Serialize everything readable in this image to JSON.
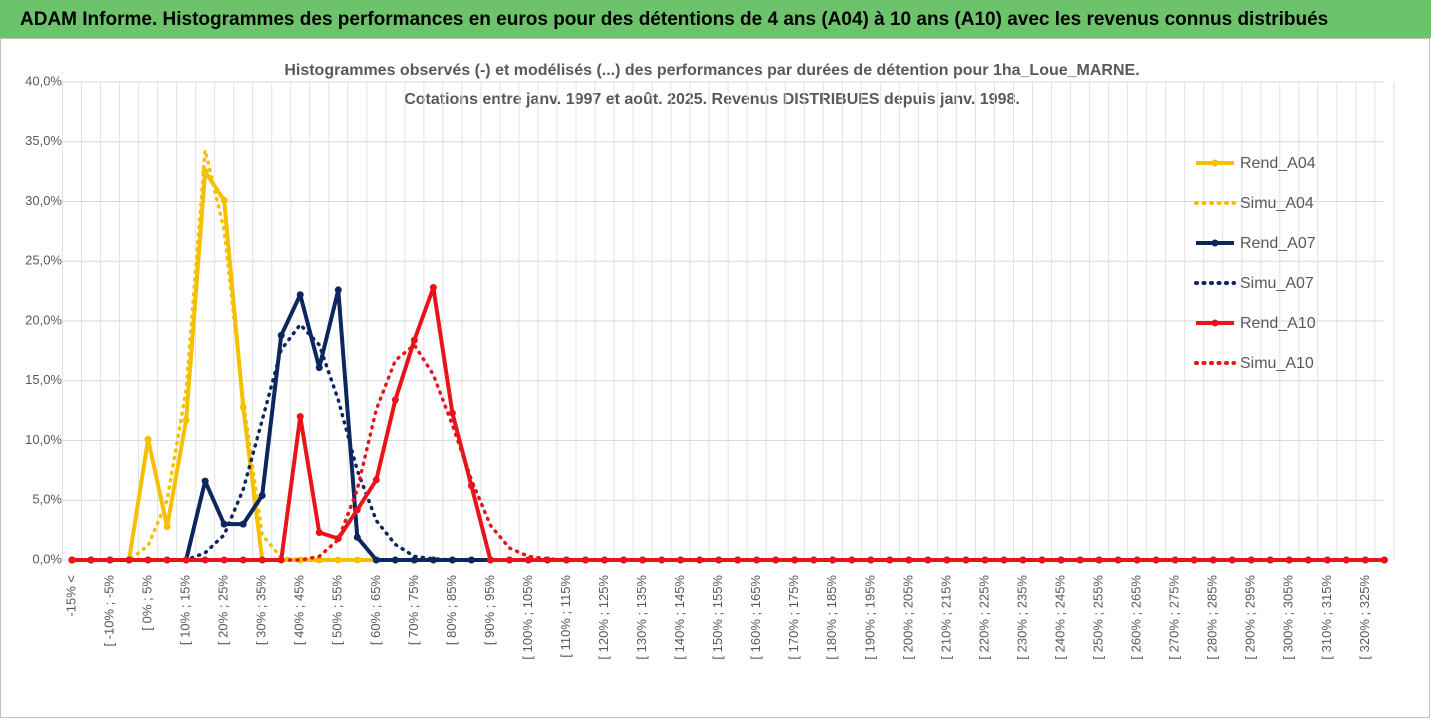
{
  "header": {
    "title": "ADAM Informe. Histogrammes des performances en euros pour des détentions de 4 ans (A04) à 10 ans (A10) avec les revenus connus distribués"
  },
  "chart_data": {
    "type": "line",
    "title": "Histogrammes observés (-) et modélisés (...) des performances par durées de détention pour 1ha_Loue_MARNE.",
    "subtitle": "Cotations entre janv. 1997 et août. 2025. Revenus DISTRIBUES depuis janv. 1998.",
    "categories": [
      "-15% <",
      null,
      "[ -10% ; -5%",
      null,
      "[ 0% ; 5%",
      null,
      "[ 10% ; 15%",
      null,
      "[ 20% ; 25%",
      null,
      "[ 30% ; 35%",
      null,
      "[ 40% ; 45%",
      null,
      "[ 50% ; 55%",
      null,
      "[ 60% ; 65%",
      null,
      "[ 70% ; 75%",
      null,
      "[ 80% ; 85%",
      null,
      "[ 90% ; 95%",
      null,
      "[ 100% ; 105%",
      null,
      "[ 110% ; 115%",
      null,
      "[ 120% ; 125%",
      null,
      "[ 130% ; 135%",
      null,
      "[ 140% ; 145%",
      null,
      "[ 150% ; 155%",
      null,
      "[ 160% ; 165%",
      null,
      "[ 170% ; 175%",
      null,
      "[ 180% ; 185%",
      null,
      "[ 190% ; 195%",
      null,
      "[ 200% ; 205%",
      null,
      "[ 210% ; 215%",
      null,
      "[ 220% ; 225%",
      null,
      "[ 230% ; 235%",
      null,
      "[ 240% ; 245%",
      null,
      "[ 250% ; 255%",
      null,
      "[ 260% ; 265%",
      null,
      "[ 270% ; 275%",
      null,
      "[ 280% ; 285%",
      null,
      "[ 290% ; 295%",
      null,
      "[ 300% ; 305%",
      null,
      "[ 310% ; 315%",
      null,
      "[ 320% ; 325%",
      null
    ],
    "series": [
      {
        "name": "Rend_A04",
        "color": "#f5c000",
        "style": "solid",
        "markers": true,
        "values": [
          0,
          0,
          0,
          0,
          10.1,
          2.8,
          11.7,
          32.5,
          30.1,
          12.8,
          0,
          0,
          0,
          0,
          0,
          0,
          0,
          0,
          0,
          0,
          0,
          0,
          0,
          0,
          0,
          0,
          0,
          0,
          0,
          0,
          0,
          0,
          0,
          0,
          0,
          0,
          0,
          0,
          0,
          0,
          0,
          0,
          0,
          0,
          0,
          0,
          0,
          0,
          0,
          0,
          0,
          0,
          0,
          0,
          0,
          0,
          0,
          0,
          0,
          0,
          0,
          0,
          0,
          0,
          0,
          0,
          0,
          0,
          0,
          0
        ]
      },
      {
        "name": "Simu_A04",
        "color": "#f5c000",
        "style": "dotted",
        "markers": false,
        "values": [
          0,
          0,
          0,
          0,
          1.2,
          5.0,
          14.2,
          34.3,
          27.6,
          13.4,
          2.1,
          0.2,
          0,
          0,
          0,
          0,
          0,
          0,
          0,
          0,
          0,
          0,
          0,
          0,
          0,
          0,
          0,
          0,
          0,
          0,
          0,
          0,
          0,
          0,
          0,
          0,
          0,
          0,
          0,
          0,
          0,
          0,
          0,
          0,
          0,
          0,
          0,
          0,
          0,
          0,
          0,
          0,
          0,
          0,
          0,
          0,
          0,
          0,
          0,
          0,
          0,
          0,
          0,
          0,
          0,
          0,
          0,
          0,
          0,
          0
        ]
      },
      {
        "name": "Rend_A07",
        "color": "#0c2660",
        "style": "solid",
        "markers": true,
        "values": [
          0,
          0,
          0,
          0,
          0,
          0,
          0,
          6.6,
          3.0,
          3.0,
          5.4,
          18.8,
          22.2,
          16.1,
          22.6,
          1.9,
          0,
          0,
          0,
          0,
          0,
          0,
          0,
          0,
          0,
          0,
          0,
          0,
          0,
          0,
          0,
          0,
          0,
          0,
          0,
          0,
          0,
          0,
          0,
          0,
          0,
          0,
          0,
          0,
          0,
          0,
          0,
          0,
          0,
          0,
          0,
          0,
          0,
          0,
          0,
          0,
          0,
          0,
          0,
          0,
          0,
          0,
          0,
          0,
          0,
          0,
          0,
          0,
          0,
          0
        ]
      },
      {
        "name": "Simu_A07",
        "color": "#0c2660",
        "style": "dotted",
        "markers": false,
        "values": [
          0,
          0,
          0,
          0,
          0,
          0,
          0,
          0.6,
          2.1,
          5.9,
          11.7,
          17.6,
          19.7,
          18.0,
          13.4,
          7.5,
          3.3,
          1.3,
          0.3,
          0.1,
          0,
          0,
          0,
          0,
          0,
          0,
          0,
          0,
          0,
          0,
          0,
          0,
          0,
          0,
          0,
          0,
          0,
          0,
          0,
          0,
          0,
          0,
          0,
          0,
          0,
          0,
          0,
          0,
          0,
          0,
          0,
          0,
          0,
          0,
          0,
          0,
          0,
          0,
          0,
          0,
          0,
          0,
          0,
          0,
          0,
          0,
          0,
          0,
          0,
          0
        ]
      },
      {
        "name": "Rend_A10",
        "color": "#e8141a",
        "style": "solid",
        "markers": true,
        "values": [
          0,
          0,
          0,
          0,
          0,
          0,
          0,
          0,
          0,
          0,
          0,
          0,
          12.0,
          2.3,
          1.8,
          4.2,
          6.7,
          13.4,
          18.4,
          22.8,
          12.3,
          6.2,
          0,
          0,
          0,
          0,
          0,
          0,
          0,
          0,
          0,
          0,
          0,
          0,
          0,
          0,
          0,
          0,
          0,
          0,
          0,
          0,
          0,
          0,
          0,
          0,
          0,
          0,
          0,
          0,
          0,
          0,
          0,
          0,
          0,
          0,
          0,
          0,
          0,
          0,
          0,
          0,
          0,
          0,
          0,
          0,
          0,
          0,
          0,
          0
        ]
      },
      {
        "name": "Simu_A10",
        "color": "#e8141a",
        "style": "dotted",
        "markers": false,
        "values": [
          0,
          0,
          0,
          0,
          0,
          0,
          0,
          0,
          0,
          0,
          0,
          0,
          0,
          0.3,
          1.7,
          5.9,
          12.6,
          16.7,
          18.0,
          15.5,
          11.3,
          6.7,
          2.9,
          1.0,
          0.3,
          0.1,
          0,
          0,
          0,
          0,
          0,
          0,
          0,
          0,
          0,
          0,
          0,
          0,
          0,
          0,
          0,
          0,
          0,
          0,
          0,
          0,
          0,
          0,
          0,
          0,
          0,
          0,
          0,
          0,
          0,
          0,
          0,
          0,
          0,
          0,
          0,
          0,
          0,
          0,
          0,
          0,
          0,
          0,
          0,
          0
        ]
      }
    ],
    "ylim": [
      0,
      40
    ],
    "yticks": [
      {
        "value": 0,
        "label": "0,0%"
      },
      {
        "value": 5,
        "label": "5,0%"
      },
      {
        "value": 10,
        "label": "10,0%"
      },
      {
        "value": 15,
        "label": "15,0%"
      },
      {
        "value": 20,
        "label": "20,0%"
      },
      {
        "value": 25,
        "label": "25,0%"
      },
      {
        "value": 30,
        "label": "30,0%"
      },
      {
        "value": 35,
        "label": "35,0%"
      },
      {
        "value": 40,
        "label": "40,0%"
      }
    ],
    "grid": true,
    "legend": "right"
  }
}
